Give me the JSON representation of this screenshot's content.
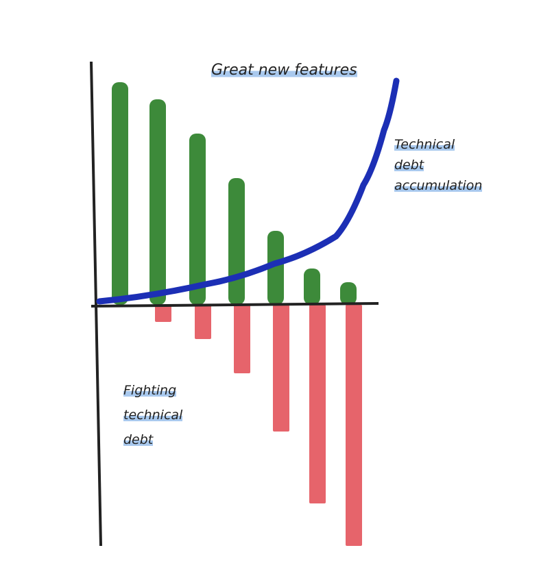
{
  "chart_data": {
    "type": "bar",
    "categories": [
      null,
      null,
      null,
      null,
      null,
      null,
      null
    ],
    "series": [
      {
        "name": "Great new features",
        "color": "#3d8a3a",
        "values": [
          325,
          300,
          250,
          185,
          108,
          53,
          33
        ]
      },
      {
        "name": "Fighting technical debt",
        "color": "#e6646b",
        "values": [
          null,
          -25,
          -50,
          -100,
          -185,
          -290,
          -352
        ]
      },
      {
        "name": "Technical debt accumulation",
        "type": "line",
        "color": "#1c2fb5",
        "x": [
          12,
          167,
          267,
          357,
          397,
          427,
          445
        ],
        "values": [
          5,
          30,
          60,
          100,
          175,
          255,
          327
        ]
      }
    ],
    "xlim": [
      0,
      450
    ],
    "ylim": [
      -352,
      355
    ]
  }
}
